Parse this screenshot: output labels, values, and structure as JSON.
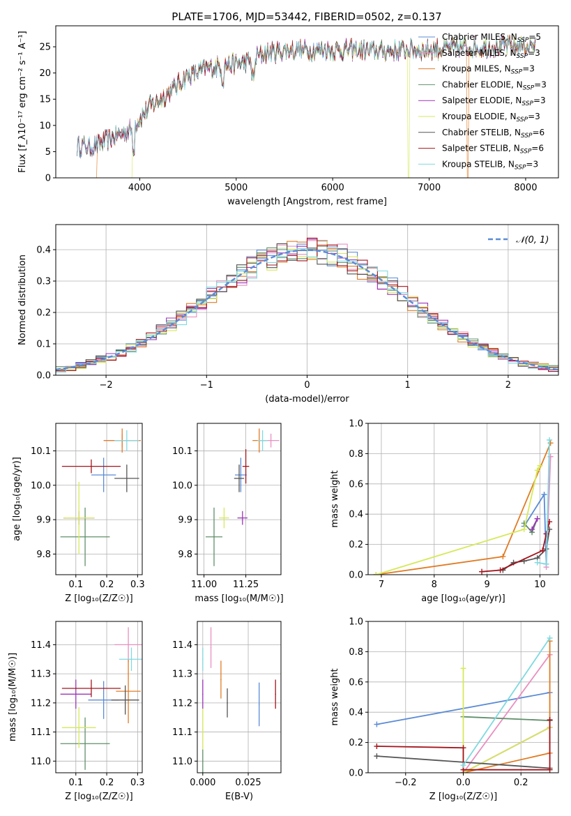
{
  "figure": {
    "title": "PLATE=1706, MJD=53442, FIBERID=0502, z=0.137"
  },
  "colors": {
    "Chabrier MILES": "#5b8bd6",
    "Salpeter MILES": "#e88fc0",
    "Kroupa MILES": "#e07b24",
    "Chabrier ELODIE": "#5f8f6a",
    "Salpeter ELODIE": "#9b35b8",
    "Kroupa ELODIE": "#d6e85a",
    "Chabrier STELIB": "#555555",
    "Salpeter STELIB": "#a3141c",
    "Kroupa STELIB": "#7fd9e0",
    "normal": "#5b8bd6"
  },
  "chart_data": [
    {
      "id": "spectrum",
      "type": "line",
      "title": "PLATE=1706, MJD=53442, FIBERID=0502, z=0.137",
      "xlabel": "wavelength [Angstrom, rest frame]",
      "ylabel": "Flux [f_λ10⁻¹⁷ erg cm⁻² s⁻¹ A⁻¹]",
      "xlim": [
        3130,
        8340
      ],
      "ylim": [
        0,
        29
      ],
      "xticks": [
        "4000",
        "5000",
        "6000",
        "7000",
        "8000"
      ],
      "yticks": [
        "0",
        "5",
        "10",
        "15",
        "20",
        "25"
      ],
      "grid": false,
      "legend_position": "right",
      "series": [
        {
          "name": "Chabrier MILES, N_SSP=5"
        },
        {
          "name": "Salpeter MILES, N_SSP=3"
        },
        {
          "name": "Kroupa MILES, N_SSP=3"
        },
        {
          "name": "Chabrier ELODIE, N_SSP=3"
        },
        {
          "name": "Salpeter ELODIE, N_SSP=3"
        },
        {
          "name": "Kroupa ELODIE, N_SSP=3"
        },
        {
          "name": "Chabrier STELIB, N_SSP=6"
        },
        {
          "name": "Salpeter STELIB, N_SSP=6"
        },
        {
          "name": "Kroupa STELIB, N_SSP=3"
        }
      ],
      "continuum": {
        "x": [
          3350,
          3500,
          3700,
          3900,
          4100,
          4300,
          4500,
          4700,
          4900,
          5100,
          5300,
          5500,
          6000,
          6500,
          7000,
          7500,
          8100
        ],
        "y": [
          6.2,
          5.8,
          7.5,
          9.2,
          13.5,
          16.2,
          19.5,
          20.8,
          21.6,
          22.0,
          23.8,
          24.3,
          24.4,
          24.2,
          24.5,
          24.9,
          25.3
        ]
      },
      "drops": [
        {
          "series": "Kroupa MILES, N_SSP=3",
          "x": 3555
        },
        {
          "series": "Kroupa ELODIE, N_SSP=3",
          "x": 3920
        },
        {
          "series": "Kroupa ELODIE, N_SSP=3",
          "x": 6790
        },
        {
          "series": "Kroupa MILES, N_SSP=3",
          "x": 7400
        }
      ]
    },
    {
      "id": "residuals",
      "type": "step",
      "xlabel": "(data-model)/error",
      "ylabel": "Normed distribution",
      "xlim": [
        -2.5,
        2.5
      ],
      "ylim": [
        0,
        0.48
      ],
      "xticks": [
        "−2",
        "−1",
        "0",
        "1",
        "2"
      ],
      "yticks": [
        "0.0",
        "0.1",
        "0.2",
        "0.3",
        "0.4"
      ],
      "grid": true,
      "legend_position": "top-right",
      "legend": [
        "𝒩(0, 1)"
      ],
      "bin_width": 0.1
    },
    {
      "id": "age-vs-Z",
      "type": "scatter",
      "xlabel": "Z [log₁₀(Z/Z☉)]",
      "ylabel": "age  [log₁₀(age/yr)]",
      "xlim": [
        0.035,
        0.315
      ],
      "ylim": [
        9.74,
        10.18
      ],
      "xticks": [
        "0.1",
        "0.2",
        "0.3"
      ],
      "yticks": [
        "9.8",
        "9.9",
        "10.0",
        "10.1"
      ],
      "grid": true,
      "points": [
        {
          "series": "Chabrier MILES",
          "x": 0.19,
          "y": 10.03,
          "xerr": 0.04,
          "yerr": 0.05
        },
        {
          "series": "Salpeter MILES",
          "x": 0.25,
          "y": 10.13,
          "xerr": 0.06,
          "yerr": 0.02
        },
        {
          "series": "Kroupa MILES",
          "x": 0.25,
          "y": 10.13,
          "xerr": 0.06,
          "yerr": 0.035
        },
        {
          "series": "Chabrier ELODIE",
          "x": 0.13,
          "y": 9.85,
          "xerr": 0.08,
          "yerr": 0.085
        },
        {
          "series": "Salpeter ELODIE",
          "x": 0.11,
          "y": 9.905,
          "xerr": 0.05,
          "yerr": 0.02
        },
        {
          "series": "Kroupa ELODIE",
          "x": 0.11,
          "y": 9.905,
          "xerr": 0.05,
          "yerr": 0.105
        },
        {
          "series": "Chabrier STELIB",
          "x": 0.265,
          "y": 10.02,
          "xerr": 0.04,
          "yerr": 0.04
        },
        {
          "series": "Salpeter STELIB",
          "x": 0.15,
          "y": 10.055,
          "xerr": 0.095,
          "yerr": 0.02
        },
        {
          "series": "Kroupa STELIB",
          "x": 0.265,
          "y": 10.13,
          "xerr": 0.04,
          "yerr": 0.03
        }
      ]
    },
    {
      "id": "age-vs-mass",
      "type": "scatter",
      "xlabel": "mass [log₁₀(M/M☉)]",
      "ylabel": "",
      "xlim": [
        10.96,
        11.46
      ],
      "ylim": [
        9.74,
        10.18
      ],
      "xticks": [
        "11.00",
        "11.25"
      ],
      "yticks": [
        "9.8",
        "9.9",
        "10.0",
        "10.1"
      ],
      "grid": true,
      "points": [
        {
          "series": "Chabrier MILES",
          "x": 11.22,
          "y": 10.03,
          "xerr": 0.035,
          "yerr": 0.05
        },
        {
          "series": "Salpeter MILES",
          "x": 11.4,
          "y": 10.13,
          "xerr": 0.05,
          "yerr": 0.02
        },
        {
          "series": "Kroupa MILES",
          "x": 11.33,
          "y": 10.13,
          "xerr": 0.04,
          "yerr": 0.035
        },
        {
          "series": "Chabrier ELODIE",
          "x": 11.06,
          "y": 9.85,
          "xerr": 0.05,
          "yerr": 0.085
        },
        {
          "series": "Salpeter ELODIE",
          "x": 11.23,
          "y": 9.905,
          "xerr": 0.03,
          "yerr": 0.02
        },
        {
          "series": "Kroupa ELODIE",
          "x": 11.12,
          "y": 9.905,
          "xerr": 0.03,
          "yerr": 0.03
        },
        {
          "series": "Chabrier STELIB",
          "x": 11.21,
          "y": 10.02,
          "xerr": 0.03,
          "yerr": 0.04
        },
        {
          "series": "Salpeter STELIB",
          "x": 11.25,
          "y": 10.055,
          "xerr": 0.02,
          "yerr": 0.05
        },
        {
          "series": "Kroupa STELIB",
          "x": 11.35,
          "y": 10.13,
          "xerr": 0.03,
          "yerr": 0.03
        }
      ]
    },
    {
      "id": "weight-vs-age",
      "type": "line",
      "xlabel": "age  [log₁₀(age/yr)]",
      "ylabel": "mass weight",
      "xlim": [
        6.75,
        10.35
      ],
      "ylim": [
        0,
        1.0
      ],
      "xticks": [
        "7",
        "8",
        "9",
        "10"
      ],
      "yticks": [
        "0.0",
        "0.2",
        "0.4",
        "0.6",
        "0.8",
        "1.0"
      ],
      "grid": true,
      "series": [
        {
          "name": "Chabrier MILES",
          "x": [
            9.7,
            10.08,
            10.12
          ],
          "y": [
            0.32,
            0.53,
            0.07
          ]
        },
        {
          "name": "Salpeter MILES",
          "x": [
            10.12,
            10.2
          ],
          "y": [
            0.05,
            0.78
          ]
        },
        {
          "name": "Kroupa MILES",
          "x": [
            6.9,
            9.3,
            10.2
          ],
          "y": [
            0.0,
            0.12,
            0.87
          ]
        },
        {
          "name": "Chabrier ELODIE",
          "x": [
            9.7,
            9.85,
            9.95
          ],
          "y": [
            0.34,
            0.28,
            0.37
          ]
        },
        {
          "name": "Salpeter ELODIE",
          "x": [
            9.85,
            9.95
          ],
          "y": [
            0.3,
            0.37
          ]
        },
        {
          "name": "Kroupa ELODIE",
          "x": [
            6.9,
            9.7,
            9.95,
            10.0
          ],
          "y": [
            0.0,
            0.3,
            0.69,
            0.72
          ]
        },
        {
          "name": "Chabrier STELIB",
          "x": [
            9.3,
            9.5,
            9.7,
            9.95,
            10.12,
            10.18
          ],
          "y": [
            0.03,
            0.08,
            0.09,
            0.11,
            0.17,
            0.3
          ]
        },
        {
          "name": "Salpeter STELIB",
          "x": [
            8.9,
            9.25,
            10.05,
            10.12,
            10.18
          ],
          "y": [
            0.02,
            0.03,
            0.16,
            0.27,
            0.35
          ]
        },
        {
          "name": "Kroupa STELIB",
          "x": [
            9.95,
            10.12,
            10.18
          ],
          "y": [
            0.08,
            0.07,
            0.89
          ]
        }
      ]
    },
    {
      "id": "mass-vs-Z",
      "type": "scatter",
      "xlabel": "Z [log₁₀(Z/Z☉)]",
      "ylabel": "mass [log₁₀(M/M☉)]",
      "xlim": [
        0.035,
        0.315
      ],
      "ylim": [
        10.96,
        11.48
      ],
      "xticks": [
        "0.1",
        "0.2",
        "0.3"
      ],
      "yticks": [
        "11.0",
        "11.1",
        "11.2",
        "11.3",
        "11.4"
      ],
      "grid": true,
      "points": [
        {
          "series": "Chabrier MILES",
          "x": 0.19,
          "y": 11.21,
          "xerr": 0.05,
          "yerr": 0.065
        },
        {
          "series": "Salpeter MILES",
          "x": 0.27,
          "y": 11.4,
          "xerr": 0.045,
          "yerr": 0.06
        },
        {
          "series": "Kroupa MILES",
          "x": 0.27,
          "y": 11.24,
          "xerr": 0.04,
          "yerr": 0.11
        },
        {
          "series": "Chabrier ELODIE",
          "x": 0.13,
          "y": 11.06,
          "xerr": 0.08,
          "yerr": 0.09
        },
        {
          "series": "Salpeter ELODIE",
          "x": 0.1,
          "y": 11.23,
          "xerr": 0.05,
          "yerr": 0.05
        },
        {
          "series": "Kroupa ELODIE",
          "x": 0.11,
          "y": 11.115,
          "xerr": 0.055,
          "yerr": 0.07
        },
        {
          "series": "Chabrier STELIB",
          "x": 0.26,
          "y": 11.21,
          "xerr": 0.045,
          "yerr": 0.05
        },
        {
          "series": "Salpeter STELIB",
          "x": 0.15,
          "y": 11.25,
          "xerr": 0.095,
          "yerr": 0.03
        },
        {
          "series": "Kroupa STELIB",
          "x": 0.28,
          "y": 11.35,
          "xerr": 0.04,
          "yerr": 0.04
        }
      ]
    },
    {
      "id": "mass-vs-ebv",
      "type": "scatter",
      "xlabel": "E(B-V)",
      "ylabel": "",
      "xlim": [
        -0.003,
        0.043
      ],
      "ylim": [
        10.96,
        11.48
      ],
      "xticks": [
        "0.000",
        "0.025"
      ],
      "yticks": [
        "11.0",
        "11.1",
        "11.2",
        "11.3",
        "11.4"
      ],
      "grid": true,
      "points": [
        {
          "series": "Chabrier MILES",
          "x": 0.031,
          "y": 11.195,
          "xerr": 0,
          "yerr": 0.075
        },
        {
          "series": "Salpeter MILES",
          "x": 0.0045,
          "y": 11.39,
          "xerr": 0,
          "yerr": 0.07
        },
        {
          "series": "Kroupa MILES",
          "x": 0.01,
          "y": 11.28,
          "xerr": 0,
          "yerr": 0.065
        },
        {
          "series": "Chabrier ELODIE",
          "x": 0.0,
          "y": 11.0,
          "xerr": 0,
          "yerr": 0.04
        },
        {
          "series": "Salpeter ELODIE",
          "x": 0.0,
          "y": 11.23,
          "xerr": 0,
          "yerr": 0.05
        },
        {
          "series": "Kroupa ELODIE",
          "x": 0.0,
          "y": 11.11,
          "xerr": 0,
          "yerr": 0.07
        },
        {
          "series": "Chabrier STELIB",
          "x": 0.0135,
          "y": 11.2,
          "xerr": 0,
          "yerr": 0.05
        },
        {
          "series": "Salpeter STELIB",
          "x": 0.04,
          "y": 11.23,
          "xerr": 0,
          "yerr": 0.05
        },
        {
          "series": "Kroupa STELIB",
          "x": 0.0,
          "y": 11.35,
          "xerr": 0,
          "yerr": 0.04
        }
      ]
    },
    {
      "id": "weight-vs-Z",
      "type": "line",
      "xlabel": "Z [log₁₀(Z/Z☉)]",
      "ylabel": "mass weight",
      "xlim": [
        -0.33,
        0.33
      ],
      "ylim": [
        0,
        1.0
      ],
      "xticks": [
        "−0.2",
        "0.0",
        "0.2"
      ],
      "yticks": [
        "0.0",
        "0.2",
        "0.4",
        "0.6",
        "0.8",
        "1.0"
      ],
      "grid": true,
      "series": [
        {
          "name": "Chabrier MILES",
          "x": [
            -0.3,
            0.3
          ],
          "y": [
            0.32,
            0.53
          ]
        },
        {
          "name": "Salpeter MILES",
          "x": [
            0.0,
            0.3
          ],
          "y": [
            0.0,
            0.78
          ]
        },
        {
          "name": "Kroupa MILES",
          "x": [
            0.0,
            0.3,
            0.3
          ],
          "y": [
            0.0,
            0.13,
            0.87
          ]
        },
        {
          "name": "Chabrier ELODIE",
          "x": [
            0.0,
            0.3
          ],
          "y": [
            0.37,
            0.345
          ]
        },
        {
          "name": "Salpeter ELODIE",
          "x": [
            0.0,
            0.3
          ],
          "y": [
            0.0,
            0.3
          ]
        },
        {
          "name": "Kroupa ELODIE",
          "x": [
            0.0,
            0.0,
            0.3
          ],
          "y": [
            0.69,
            0.0,
            0.3
          ]
        },
        {
          "name": "Chabrier STELIB",
          "x": [
            -0.3,
            0.3
          ],
          "y": [
            0.11,
            0.03
          ]
        },
        {
          "name": "Salpeter STELIB",
          "x": [
            -0.3,
            0.0,
            0.0,
            0.3,
            0.3
          ],
          "y": [
            0.175,
            0.165,
            0.02,
            0.02,
            0.35
          ]
        },
        {
          "name": "Kroupa STELIB",
          "x": [
            0.0,
            0.3
          ],
          "y": [
            0.05,
            0.89
          ]
        }
      ]
    }
  ]
}
